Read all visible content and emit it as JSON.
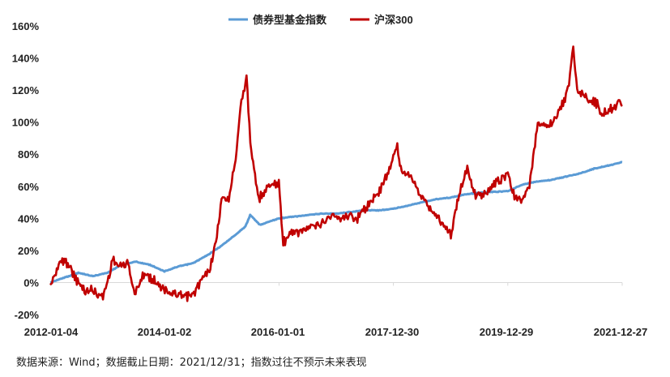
{
  "chart_data": {
    "type": "line",
    "title": "",
    "xlabel": "",
    "ylabel": "",
    "x_tick_labels": [
      "2012-01-04",
      "2014-01-02",
      "2016-01-01",
      "2017-12-30",
      "2019-12-29",
      "2021-12-27"
    ],
    "y_tick_labels": [
      "-20%",
      "0%",
      "20%",
      "40%",
      "60%",
      "80%",
      "100%",
      "120%",
      "140%",
      "160%"
    ],
    "ylim": [
      -20,
      160
    ],
    "xlim": [
      "2012-01-04",
      "2021-12-27"
    ],
    "y_unit": "%",
    "grid": false,
    "legend_position": "top-center",
    "series": [
      {
        "name": "债券型基金指数",
        "color": "#5b9bd5",
        "points": [
          [
            "2012-01-04",
            0
          ],
          [
            "2012-04-01",
            3
          ],
          [
            "2012-07-01",
            6
          ],
          [
            "2012-10-01",
            4
          ],
          [
            "2013-01-01",
            6
          ],
          [
            "2013-04-01",
            11
          ],
          [
            "2013-07-01",
            13
          ],
          [
            "2013-10-01",
            11
          ],
          [
            "2014-01-01",
            7
          ],
          [
            "2014-04-01",
            10
          ],
          [
            "2014-07-01",
            12
          ],
          [
            "2014-10-01",
            17
          ],
          [
            "2015-01-01",
            23
          ],
          [
            "2015-04-01",
            30
          ],
          [
            "2015-06-01",
            35
          ],
          [
            "2015-07-01",
            42
          ],
          [
            "2015-09-01",
            36
          ],
          [
            "2016-01-01",
            40
          ],
          [
            "2016-04-01",
            41
          ],
          [
            "2016-07-01",
            42
          ],
          [
            "2016-10-01",
            43
          ],
          [
            "2017-01-01",
            43
          ],
          [
            "2017-04-01",
            44
          ],
          [
            "2017-07-01",
            45
          ],
          [
            "2017-10-01",
            45
          ],
          [
            "2017-12-30",
            46
          ],
          [
            "2018-04-01",
            48
          ],
          [
            "2018-07-01",
            50
          ],
          [
            "2018-10-01",
            52
          ],
          [
            "2019-01-01",
            53
          ],
          [
            "2019-04-01",
            55
          ],
          [
            "2019-07-01",
            56
          ],
          [
            "2019-12-29",
            57
          ],
          [
            "2020-04-01",
            61
          ],
          [
            "2020-07-01",
            63
          ],
          [
            "2020-10-01",
            64
          ],
          [
            "2021-01-01",
            66
          ],
          [
            "2021-04-01",
            68
          ],
          [
            "2021-07-01",
            71
          ],
          [
            "2021-10-01",
            73
          ],
          [
            "2021-12-27",
            75
          ]
        ]
      },
      {
        "name": "沪深300",
        "color": "#c00000",
        "points": [
          [
            "2012-01-04",
            -2
          ],
          [
            "2012-02-15",
            8
          ],
          [
            "2012-03-15",
            14
          ],
          [
            "2012-05-01",
            12
          ],
          [
            "2012-06-15",
            2
          ],
          [
            "2012-08-15",
            -6
          ],
          [
            "2012-09-15",
            -4
          ],
          [
            "2012-11-15",
            -8
          ],
          [
            "2012-12-05",
            -9
          ],
          [
            "2013-01-15",
            5
          ],
          [
            "2013-02-05",
            15
          ],
          [
            "2013-03-15",
            10
          ],
          [
            "2013-05-15",
            12
          ],
          [
            "2013-06-25",
            -8
          ],
          [
            "2013-08-15",
            5
          ],
          [
            "2013-09-15",
            4
          ],
          [
            "2013-11-15",
            0
          ],
          [
            "2014-01-15",
            -5
          ],
          [
            "2014-03-15",
            -8
          ],
          [
            "2014-05-15",
            -9
          ],
          [
            "2014-07-01",
            -8
          ],
          [
            "2014-08-15",
            0
          ],
          [
            "2014-10-15",
            8
          ],
          [
            "2014-11-25",
            25
          ],
          [
            "2014-12-31",
            52
          ],
          [
            "2015-02-15",
            52
          ],
          [
            "2015-03-31",
            78
          ],
          [
            "2015-04-30",
            110
          ],
          [
            "2015-06-08",
            128
          ],
          [
            "2015-07-08",
            80
          ],
          [
            "2015-08-25",
            52
          ],
          [
            "2015-10-15",
            60
          ],
          [
            "2015-12-31",
            62
          ],
          [
            "2016-01-28",
            25
          ],
          [
            "2016-03-15",
            30
          ],
          [
            "2016-05-15",
            32
          ],
          [
            "2016-07-15",
            34
          ],
          [
            "2016-09-15",
            36
          ],
          [
            "2016-11-30",
            42
          ],
          [
            "2017-01-15",
            40
          ],
          [
            "2017-03-15",
            42
          ],
          [
            "2017-05-15",
            40
          ],
          [
            "2017-07-15",
            48
          ],
          [
            "2017-09-15",
            54
          ],
          [
            "2017-11-15",
            66
          ],
          [
            "2018-01-24",
            85
          ],
          [
            "2018-02-15",
            70
          ],
          [
            "2018-04-15",
            68
          ],
          [
            "2018-06-15",
            55
          ],
          [
            "2018-08-15",
            47
          ],
          [
            "2018-10-15",
            40
          ],
          [
            "2018-12-31",
            30
          ],
          [
            "2019-02-28",
            58
          ],
          [
            "2019-04-15",
            72
          ],
          [
            "2019-06-01",
            55
          ],
          [
            "2019-08-15",
            55
          ],
          [
            "2019-10-15",
            62
          ],
          [
            "2019-12-29",
            68
          ],
          [
            "2020-02-03",
            55
          ],
          [
            "2020-03-23",
            50
          ],
          [
            "2020-05-15",
            60
          ],
          [
            "2020-07-07",
            100
          ],
          [
            "2020-09-15",
            98
          ],
          [
            "2020-11-15",
            105
          ],
          [
            "2021-01-15",
            120
          ],
          [
            "2021-02-18",
            146
          ],
          [
            "2021-03-15",
            120
          ],
          [
            "2021-05-15",
            115
          ],
          [
            "2021-07-15",
            112
          ],
          [
            "2021-08-20",
            105
          ],
          [
            "2021-10-15",
            108
          ],
          [
            "2021-12-10",
            113
          ],
          [
            "2021-12-27",
            110
          ]
        ]
      }
    ]
  },
  "footer": {
    "source_note": "数据来源：Wind；数据截止日期：2021/12/31；指数过往不预示未来表现"
  }
}
